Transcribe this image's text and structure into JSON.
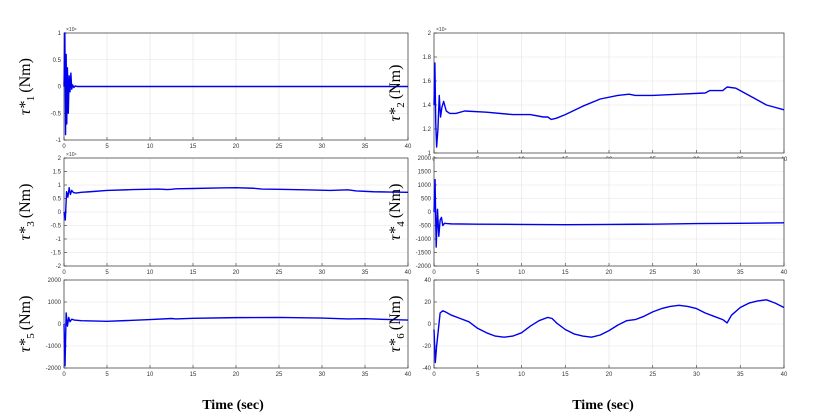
{
  "figure": {
    "xlabel_left": "Time (sec)",
    "xlabel_right": "Time (sec)"
  },
  "chart_data": [
    {
      "type": "line",
      "ylabel": "τ*1 (Nm)",
      "ylabel_main": "τ*",
      "ylabel_sub": "1",
      "ylabel_unit": "(Nm)",
      "multiplier": "×10⁶",
      "xlim": [
        0,
        40
      ],
      "ylim": [
        -1,
        1
      ],
      "xticks": [
        "0",
        "5",
        "10",
        "15",
        "20",
        "25",
        "30",
        "35",
        "40"
      ],
      "yticks": [
        "-1",
        "-0.5",
        "0",
        "0.5",
        "1"
      ],
      "grid": true,
      "series": [
        {
          "color": "#0000ee",
          "x": [
            0,
            0.1,
            0.18,
            0.25,
            0.32,
            0.4,
            0.5,
            0.6,
            0.7,
            0.8,
            0.9,
            1.0,
            1.15,
            1.3,
            1.5,
            2,
            40
          ],
          "y": [
            0,
            1.0,
            -0.9,
            0.6,
            -0.7,
            0.35,
            -0.5,
            0.2,
            -0.1,
            0.25,
            -0.05,
            0.03,
            -0.02,
            0.01,
            0,
            0,
            0
          ]
        }
      ]
    },
    {
      "type": "line",
      "ylabel": "τ*2 (Nm)",
      "ylabel_main": "τ*",
      "ylabel_sub": "2",
      "ylabel_unit": "(Nm)",
      "multiplier": "×10⁴",
      "xlim": [
        0,
        40
      ],
      "ylim": [
        1,
        2
      ],
      "xticks": [
        "0",
        "5",
        "10",
        "15",
        "20",
        "25",
        "30",
        "35",
        "40"
      ],
      "yticks": [
        "1",
        "1.2",
        "1.4",
        "1.6",
        "1.8",
        "2"
      ],
      "grid": true,
      "series": [
        {
          "color": "#0000ee",
          "x": [
            0,
            0.1,
            0.2,
            0.3,
            0.45,
            0.6,
            0.75,
            0.9,
            1.1,
            1.4,
            1.8,
            2.5,
            3.5,
            6,
            9,
            11,
            12.5,
            13,
            13.4,
            14,
            15,
            17,
            19,
            21,
            22.3,
            23,
            25,
            28,
            31,
            31.5,
            33,
            33.5,
            34.5,
            36,
            38,
            40
          ],
          "y": [
            1.4,
            1.75,
            1.25,
            1.05,
            1.2,
            1.48,
            1.3,
            1.38,
            1.43,
            1.35,
            1.33,
            1.33,
            1.35,
            1.34,
            1.32,
            1.32,
            1.3,
            1.3,
            1.28,
            1.29,
            1.32,
            1.39,
            1.45,
            1.48,
            1.49,
            1.48,
            1.48,
            1.49,
            1.5,
            1.52,
            1.52,
            1.55,
            1.54,
            1.48,
            1.4,
            1.36
          ]
        }
      ]
    },
    {
      "type": "line",
      "ylabel": "τ*3 (Nm)",
      "ylabel_main": "τ*",
      "ylabel_sub": "3",
      "ylabel_unit": "(Nm)",
      "multiplier": "×10⁴",
      "xlim": [
        0,
        40
      ],
      "ylim": [
        -2,
        2
      ],
      "xticks": [
        "0",
        "5",
        "10",
        "15",
        "20",
        "25",
        "30",
        "35",
        "40"
      ],
      "yticks": [
        "-2",
        "-1.5",
        "-1",
        "-0.5",
        "0",
        "0.5",
        "1",
        "1.5",
        "2"
      ],
      "grid": true,
      "series": [
        {
          "color": "#0000ee",
          "x": [
            0,
            0.15,
            0.3,
            0.45,
            0.6,
            0.75,
            0.9,
            1.1,
            1.4,
            2,
            3,
            5,
            8,
            11,
            12,
            12.5,
            13,
            15,
            18,
            20,
            22,
            23,
            25,
            28,
            31,
            33,
            34,
            36,
            38,
            40
          ],
          "y": [
            0,
            -0.3,
            0.75,
            0.55,
            0.9,
            0.65,
            0.8,
            0.72,
            0.7,
            0.73,
            0.75,
            0.8,
            0.83,
            0.85,
            0.83,
            0.84,
            0.86,
            0.87,
            0.89,
            0.9,
            0.88,
            0.85,
            0.84,
            0.82,
            0.8,
            0.82,
            0.78,
            0.75,
            0.74,
            0.73
          ]
        }
      ]
    },
    {
      "type": "line",
      "ylabel": "τ*4 (Nm)",
      "ylabel_main": "τ*",
      "ylabel_sub": "4",
      "ylabel_unit": "(Nm)",
      "multiplier": "",
      "xlim": [
        0,
        40
      ],
      "ylim": [
        -2000,
        2000
      ],
      "xticks": [
        "0",
        "5",
        "10",
        "15",
        "20",
        "25",
        "30",
        "35",
        "40"
      ],
      "yticks": [
        "-2000",
        "-1500",
        "-1000",
        "-500",
        "0",
        "500",
        "1000",
        "1500",
        "2000"
      ],
      "grid": true,
      "series": [
        {
          "color": "#0000ee",
          "x": [
            0,
            0.12,
            0.25,
            0.4,
            0.55,
            0.7,
            0.85,
            1.0,
            1.2,
            1.5,
            2,
            5,
            10,
            15,
            20,
            25,
            30,
            35,
            40
          ],
          "y": [
            0,
            1200,
            -1300,
            100,
            -900,
            -300,
            -200,
            -500,
            -420,
            -430,
            -440,
            -450,
            -460,
            -470,
            -460,
            -450,
            -430,
            -420,
            -400
          ]
        }
      ]
    },
    {
      "type": "line",
      "ylabel": "τ*5 (Nm)",
      "ylabel_main": "τ*",
      "ylabel_sub": "5",
      "ylabel_unit": "(Nm)",
      "multiplier": "",
      "xlim": [
        0,
        40
      ],
      "ylim": [
        -2000,
        2000
      ],
      "xticks": [
        "0",
        "5",
        "10",
        "15",
        "20",
        "25",
        "30",
        "35",
        "40"
      ],
      "yticks": [
        "-2000",
        "-1000",
        "0",
        "1000",
        "2000"
      ],
      "grid": true,
      "series": [
        {
          "color": "#0000ee",
          "x": [
            0,
            0.12,
            0.25,
            0.4,
            0.55,
            0.7,
            0.9,
            1.2,
            2,
            5,
            10,
            12.5,
            13,
            15,
            20,
            25,
            28,
            30,
            33,
            35,
            38,
            40
          ],
          "y": [
            0,
            -1900,
            500,
            -100,
            300,
            100,
            220,
            180,
            150,
            120,
            200,
            250,
            230,
            260,
            290,
            300,
            280,
            270,
            230,
            240,
            200,
            180
          ]
        }
      ]
    },
    {
      "type": "line",
      "ylabel": "τ*6 (Nm)",
      "ylabel_main": "τ*",
      "ylabel_sub": "6",
      "ylabel_unit": "(Nm)",
      "multiplier": "",
      "xlim": [
        0,
        40
      ],
      "ylim": [
        -40,
        40
      ],
      "xticks": [
        "0",
        "5",
        "10",
        "15",
        "20",
        "25",
        "30",
        "35",
        "40"
      ],
      "yticks": [
        "-40",
        "-20",
        "0",
        "20",
        "40"
      ],
      "grid": true,
      "series": [
        {
          "color": "#0000ee",
          "x": [
            0,
            0.15,
            0.3,
            0.5,
            0.7,
            1.0,
            1.3,
            2,
            3,
            4,
            5,
            6,
            7,
            8,
            9,
            10,
            11,
            12,
            13,
            13.5,
            14,
            15,
            16,
            17,
            18,
            19,
            20,
            21,
            22,
            23,
            24,
            25,
            26,
            27,
            28,
            29,
            30,
            31,
            32,
            33,
            33.5,
            34,
            35,
            36,
            37,
            38,
            39,
            40
          ],
          "y": [
            -5,
            -35,
            -20,
            -5,
            10,
            12,
            11,
            8,
            5,
            2,
            -4,
            -8,
            -11,
            -12,
            -11,
            -8,
            -2,
            3,
            6,
            5,
            1,
            -5,
            -9,
            -11,
            -12,
            -10,
            -6,
            -1,
            3,
            4,
            7,
            11,
            14,
            16,
            17,
            16,
            14,
            10,
            7,
            4,
            1,
            8,
            15,
            19,
            21,
            22,
            19,
            15
          ]
        }
      ]
    }
  ]
}
